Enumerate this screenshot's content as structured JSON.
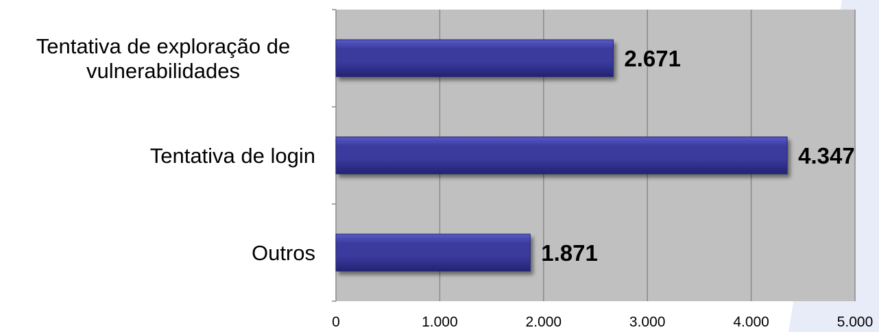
{
  "chart_data": {
    "type": "bar",
    "orientation": "horizontal",
    "categories": [
      [
        "Tentativa de exploração de",
        "vulnerabilidades"
      ],
      [
        "Tentativa de login"
      ],
      [
        "Outros"
      ]
    ],
    "values": [
      2671,
      4347,
      1871
    ],
    "data_labels": [
      "2.671",
      "4.347",
      "1.871"
    ],
    "x_ticks": [
      0,
      1000,
      2000,
      3000,
      4000,
      5000
    ],
    "x_tick_labels": [
      "0",
      "1.000",
      "2.000",
      "3.000",
      "4.000",
      "5.000"
    ],
    "xlim": [
      0,
      5000
    ],
    "grid": true,
    "title": "",
    "xlabel": "",
    "ylabel": "",
    "colors": {
      "bar": "#3a3a9e",
      "bar_light": "#5a5ac8",
      "bar_dark": "#232373",
      "plot_background": "#c0c0c0",
      "gridline": "#8a8a8a",
      "decoration": "#e8ecf8"
    }
  }
}
